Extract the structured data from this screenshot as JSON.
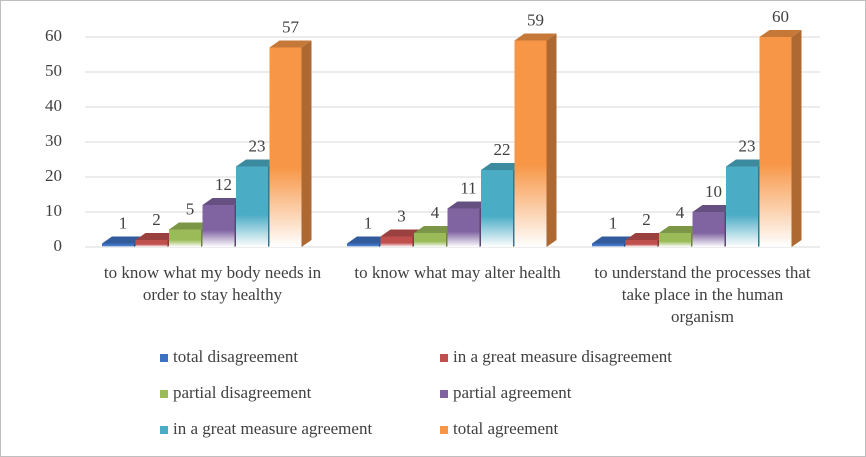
{
  "chart_data": {
    "type": "bar3d",
    "categories": [
      "to know what my body needs in order to stay healthy",
      "to know what may alter health",
      "to understand the processes that take place in the human organism"
    ],
    "series": [
      {
        "name": "total disagreement",
        "color": "#3d72c2",
        "values": [
          1,
          1,
          1
        ]
      },
      {
        "name": "in a great measure disagreement",
        "color": "#c0504d",
        "values": [
          2,
          3,
          2
        ]
      },
      {
        "name": "partial disagreement",
        "color": "#9bbb59",
        "values": [
          5,
          4,
          4
        ]
      },
      {
        "name": "partial agreement",
        "color": "#8064a2",
        "values": [
          12,
          11,
          10
        ]
      },
      {
        "name": "in a great measure agreement",
        "color": "#4bacc6",
        "values": [
          23,
          22,
          23
        ]
      },
      {
        "name": "total agreement",
        "color": "#f79646",
        "values": [
          57,
          59,
          60
        ]
      }
    ],
    "ylim": [
      0,
      60
    ],
    "yticks": [
      0,
      10,
      20,
      30,
      40,
      50,
      60
    ],
    "grid": true,
    "legend": "bottom"
  }
}
